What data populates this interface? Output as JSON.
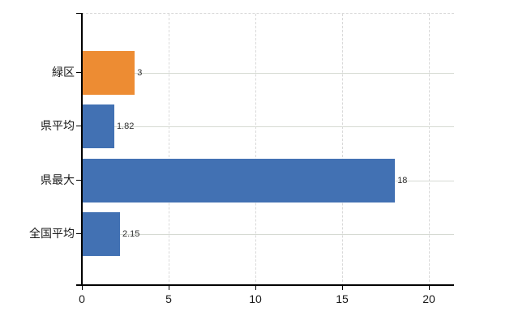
{
  "chart_data": {
    "type": "bar",
    "orientation": "horizontal",
    "title": "",
    "xlabel": "",
    "ylabel": "",
    "categories": [
      "緑区",
      "県平均",
      "県最大",
      "全国平均"
    ],
    "values": [
      3,
      1.82,
      18,
      2.15
    ],
    "value_labels": [
      "3",
      "1.82",
      "18",
      "2.15"
    ],
    "bar_colors": [
      "#ED8C33",
      "#4271B3",
      "#4271B3",
      "#4271B3"
    ],
    "x_ticks": [
      0,
      5,
      10,
      15,
      20
    ],
    "x_tick_labels": [
      "0",
      "5",
      "10",
      "15",
      "20"
    ],
    "xlim": [
      0,
      21.45
    ],
    "legend": "none",
    "grid": {
      "vertical": "dashed",
      "horizontal": "solid",
      "top_border": "dashed"
    },
    "colors": {
      "accent_orange": "#ED8C33",
      "accent_blue": "#4271B3",
      "axis": "#000000",
      "gridline_solid": "#D6DAD3",
      "gridline_dashed": "#D9D9D9",
      "label_text": "#1A1A1A",
      "value_text": "#303030",
      "background": "#FFFFFF"
    }
  }
}
